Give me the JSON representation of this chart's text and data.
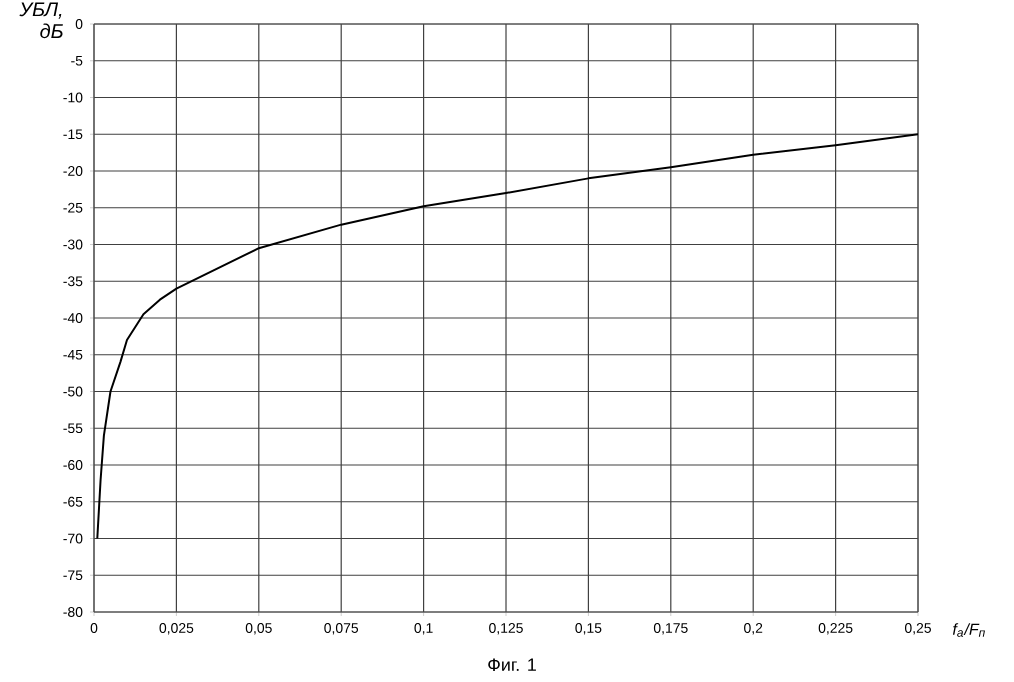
{
  "chart_data": {
    "type": "line",
    "ylabel": "УБЛ, дБ",
    "xlabel": "f$_{a}$/F$_{п}$",
    "annotations": [
      "Фиг. 1"
    ],
    "series": [
      {
        "color": "#000000",
        "x": [
          0.001,
          0.002,
          0.003,
          0.005,
          0.008,
          0.01,
          0.015,
          0.02,
          0.025,
          0.05,
          0.075,
          0.1,
          0.125,
          0.15,
          0.175,
          0.2,
          0.225,
          0.25
        ],
        "values": [
          -70,
          -62,
          -56,
          -50,
          -46,
          -43,
          -39.5,
          -37.5,
          -36,
          -30.5,
          -27.3,
          -24.8,
          -23,
          -21,
          -19.5,
          -17.8,
          -16.5,
          -15
        ]
      }
    ],
    "xlim": [
      0,
      0.25
    ],
    "ylim": [
      -80,
      0
    ],
    "xticks": [
      0,
      {
        "value": 0.025,
        "label": "0,025"
      },
      {
        "value": 0.05,
        "label": "0,05"
      },
      {
        "value": 0.075,
        "label": "0,075"
      },
      {
        "value": 0.1,
        "label": "0,1"
      },
      {
        "value": 0.125,
        "label": "0,125"
      },
      {
        "value": 0.15,
        "label": "0,15"
      },
      {
        "value": 0.175,
        "label": "0,175"
      },
      {
        "value": 0.2,
        "label": "0,2"
      },
      {
        "value": 0.225,
        "label": "0,225"
      },
      {
        "value": 0.25,
        "label": "0,25"
      }
    ],
    "yticks": [
      0,
      -5,
      -10,
      -15,
      -20,
      -25,
      -30,
      -35,
      -40,
      -45,
      -50,
      -55,
      -60,
      -65,
      -70,
      -75,
      -80
    ],
    "grid": true,
    "marker": "none",
    "line_style": "solid"
  }
}
